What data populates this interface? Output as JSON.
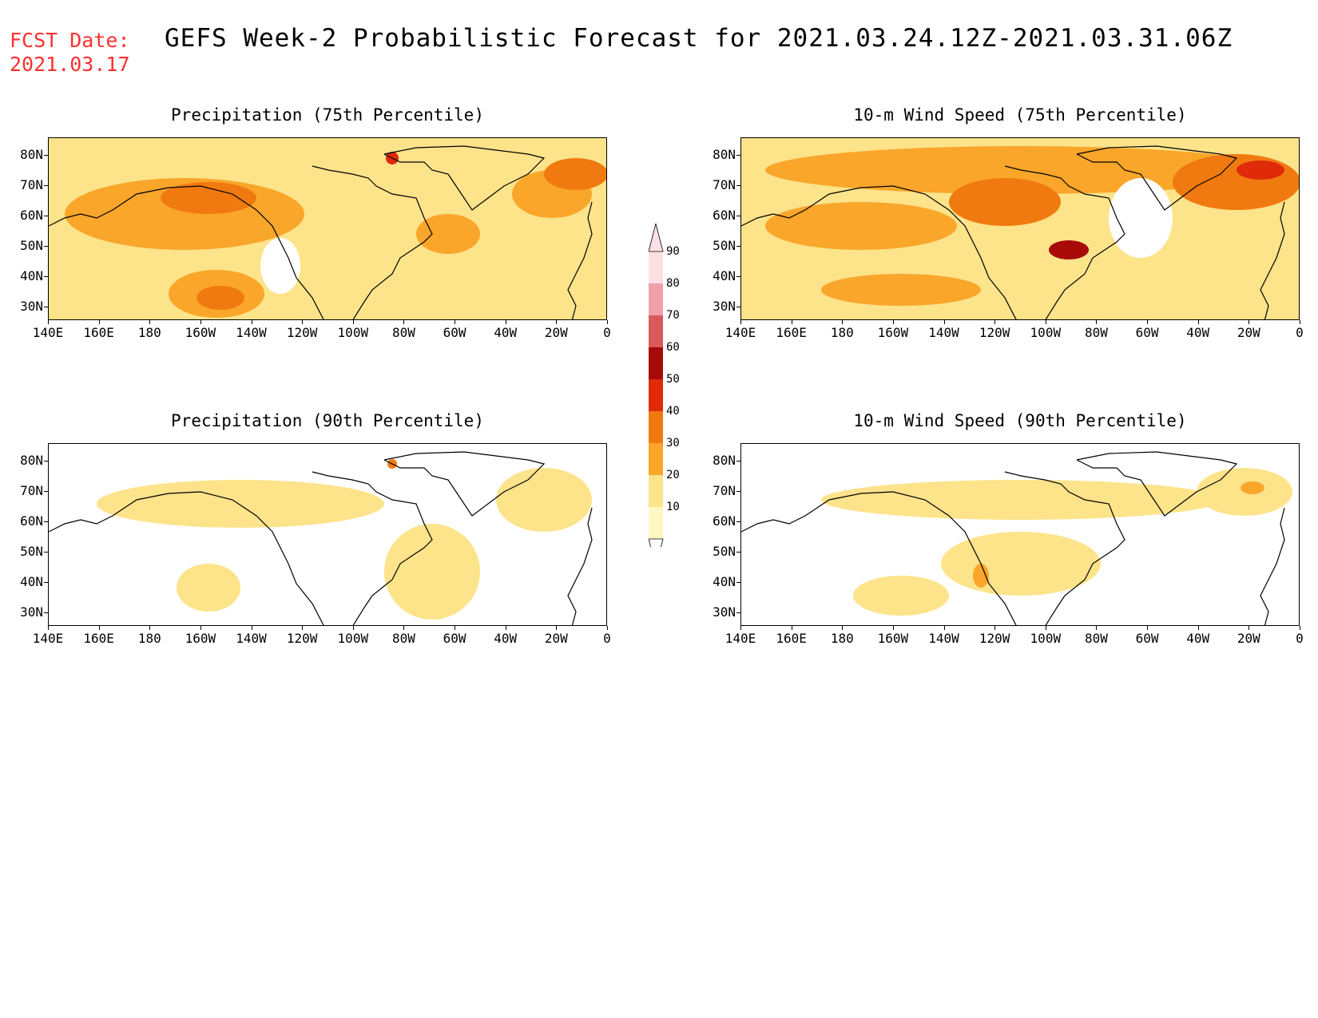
{
  "header": {
    "fcst_label": "FCST Date:",
    "fcst_date": "2021.03.17",
    "title": "GEFS Week-2 Probabilistic Forecast for 2021.03.24.12Z-2021.03.31.06Z"
  },
  "panels": [
    {
      "title": "Precipitation (75th Percentile)"
    },
    {
      "title": "10-m Wind Speed (75th Percentile)"
    },
    {
      "title": "Precipitation (90th Percentile)"
    },
    {
      "title": "10-m Wind Speed (90th Percentile)"
    }
  ],
  "axes": {
    "lat_labels": [
      "80N",
      "70N",
      "60N",
      "50N",
      "40N",
      "30N"
    ],
    "lon_labels": [
      "140E",
      "160E",
      "180",
      "160W",
      "140W",
      "120W",
      "100W",
      "80W",
      "60W",
      "40W",
      "20W",
      "0"
    ]
  },
  "legend": {
    "levels": [
      "10",
      "20",
      "30",
      "40",
      "50",
      "60",
      "70",
      "80",
      "90"
    ],
    "colors": [
      "#fff8c4",
      "#fde38a",
      "#f9a62a",
      "#f07a10",
      "#e02a0a",
      "#a80a0a",
      "#d85a5a",
      "#f0a0a8",
      "#fde0e4"
    ]
  }
}
